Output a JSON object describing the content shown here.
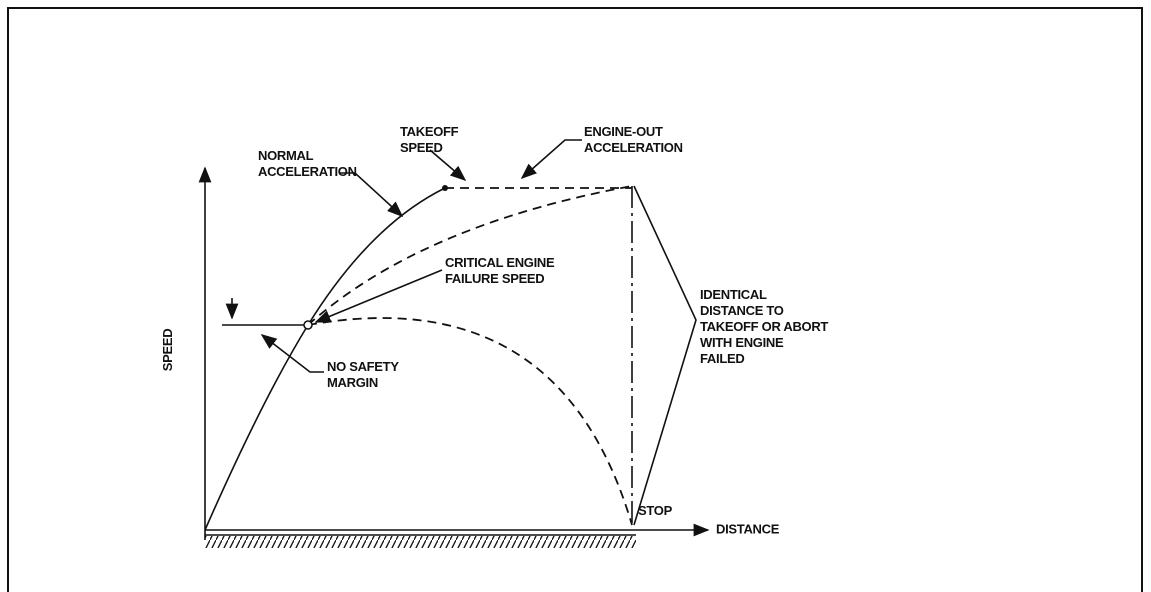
{
  "axes": {
    "y_label": "SPEED",
    "x_label": "DISTANCE"
  },
  "labels": {
    "normal_acceleration": [
      "NORMAL",
      "ACCELERATION"
    ],
    "takeoff_speed": [
      "TAKEOFF",
      "SPEED"
    ],
    "engine_out_acceleration": [
      "ENGINE-OUT",
      "ACCELERATION"
    ],
    "critical_engine_failure_speed": [
      "CRITICAL ENGINE",
      "FAILURE SPEED"
    ],
    "identical_distance": [
      "IDENTICAL",
      "DISTANCE TO",
      "TAKEOFF OR ABORT",
      "WITH ENGINE",
      "FAILED"
    ],
    "no_safety_margin": [
      "NO SAFETY",
      "MARGIN"
    ],
    "stop": "STOP"
  }
}
